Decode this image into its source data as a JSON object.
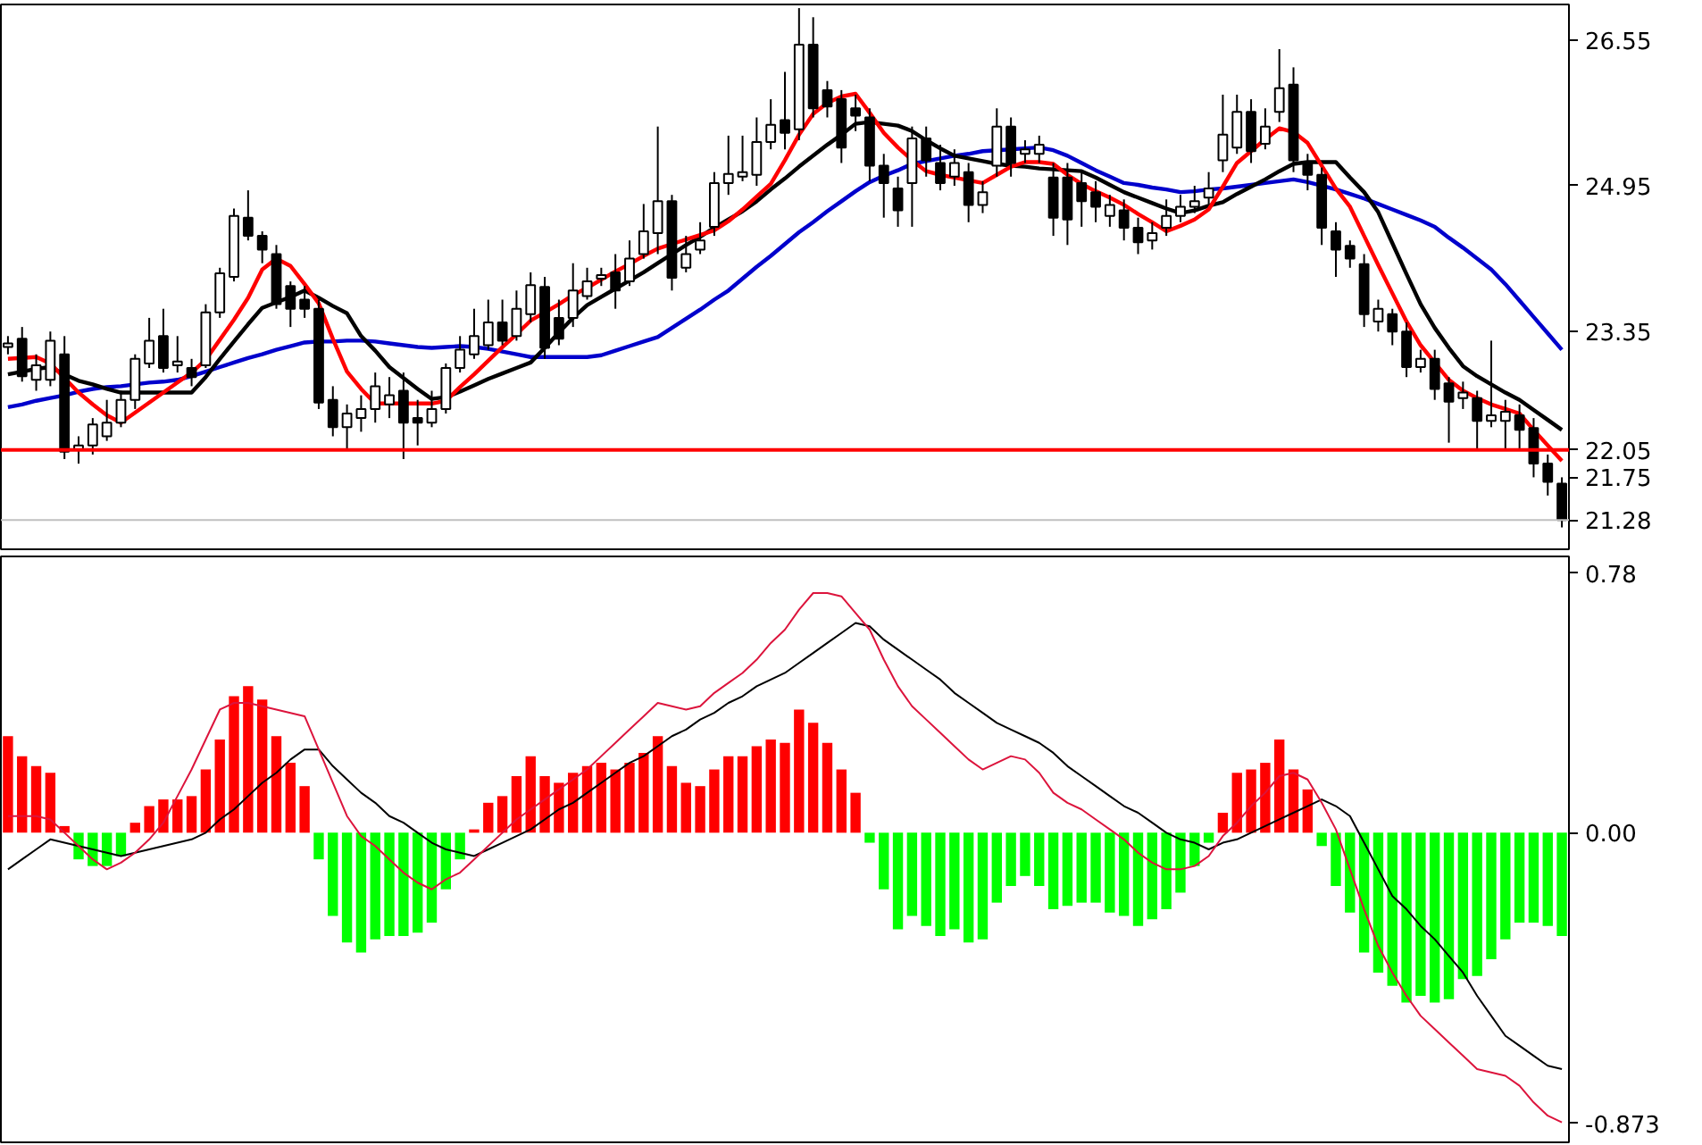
{
  "chart_data": [
    {
      "type": "candlestick",
      "categories": [
        null,
        null,
        null,
        null,
        null,
        null,
        null,
        null,
        null,
        null,
        null,
        null,
        null,
        null,
        null,
        null,
        null,
        null,
        null,
        null,
        null,
        null,
        null,
        null,
        null,
        null,
        null,
        null,
        null,
        null,
        null,
        null,
        null,
        null,
        null,
        null,
        null,
        null,
        null,
        null,
        null,
        null,
        null,
        null,
        null,
        null,
        null,
        null,
        null,
        null,
        null,
        null,
        null,
        null,
        null,
        null,
        null,
        null,
        null,
        null,
        null,
        null,
        null,
        null,
        null,
        null,
        null,
        null,
        null,
        null,
        null,
        null,
        null,
        null,
        null,
        null,
        null,
        null,
        null,
        null,
        null,
        null,
        null,
        null,
        null,
        null,
        null,
        null,
        null,
        null,
        null,
        null,
        null,
        null,
        null,
        null,
        null,
        null,
        null,
        null,
        null,
        null,
        null,
        null,
        null,
        null,
        null,
        null,
        null,
        null,
        null
      ],
      "ohlc": [
        [
          23.18,
          23.3,
          23.1,
          23.22
        ],
        [
          23.27,
          23.4,
          22.8,
          22.86
        ],
        [
          22.82,
          23.1,
          22.7,
          22.98
        ],
        [
          22.82,
          23.35,
          22.75,
          23.25
        ],
        [
          23.1,
          23.3,
          21.95,
          22.03
        ],
        [
          22.05,
          22.2,
          21.9,
          22.1
        ],
        [
          22.1,
          22.4,
          22.0,
          22.33
        ],
        [
          22.2,
          22.6,
          22.15,
          22.35
        ],
        [
          22.35,
          22.7,
          22.3,
          22.6
        ],
        [
          22.6,
          23.1,
          22.5,
          23.05
        ],
        [
          23.0,
          23.5,
          22.95,
          23.25
        ],
        [
          23.3,
          23.6,
          22.9,
          22.95
        ],
        [
          22.98,
          23.3,
          22.9,
          23.02
        ],
        [
          22.95,
          23.05,
          22.75,
          22.85
        ],
        [
          22.98,
          23.65,
          22.95,
          23.56
        ],
        [
          23.56,
          24.05,
          23.5,
          23.99
        ],
        [
          23.95,
          24.7,
          23.9,
          24.62
        ],
        [
          24.6,
          24.9,
          24.35,
          24.4
        ],
        [
          24.4,
          24.45,
          24.1,
          24.25
        ],
        [
          24.2,
          24.3,
          23.6,
          23.65
        ],
        [
          23.85,
          23.9,
          23.4,
          23.6
        ],
        [
          23.7,
          23.85,
          23.5,
          23.6
        ],
        [
          23.6,
          23.7,
          22.5,
          22.57
        ],
        [
          22.6,
          22.75,
          22.2,
          22.3
        ],
        [
          22.3,
          22.55,
          22.05,
          22.45
        ],
        [
          22.4,
          22.65,
          22.25,
          22.5
        ],
        [
          22.5,
          22.9,
          22.35,
          22.75
        ],
        [
          22.55,
          22.85,
          22.4,
          22.65
        ],
        [
          22.7,
          22.9,
          21.95,
          22.35
        ],
        [
          22.4,
          22.6,
          22.1,
          22.35
        ],
        [
          22.35,
          22.7,
          22.3,
          22.5
        ],
        [
          22.5,
          23.0,
          22.45,
          22.95
        ],
        [
          22.95,
          23.3,
          22.9,
          23.15
        ],
        [
          23.1,
          23.6,
          23.05,
          23.3
        ],
        [
          23.2,
          23.7,
          23.15,
          23.45
        ],
        [
          23.45,
          23.7,
          23.2,
          23.25
        ],
        [
          23.3,
          23.8,
          23.25,
          23.6
        ],
        [
          23.54,
          24.0,
          23.45,
          23.86
        ],
        [
          23.84,
          23.95,
          23.05,
          23.17
        ],
        [
          23.5,
          23.7,
          23.2,
          23.27
        ],
        [
          23.5,
          24.1,
          23.4,
          23.8
        ],
        [
          23.74,
          24.05,
          23.7,
          23.9
        ],
        [
          23.93,
          24.05,
          23.85,
          23.97
        ],
        [
          24.0,
          24.2,
          23.6,
          23.8
        ],
        [
          23.9,
          24.35,
          23.85,
          24.15
        ],
        [
          24.2,
          24.75,
          24.15,
          24.45
        ],
        [
          24.43,
          25.6,
          24.2,
          24.78
        ],
        [
          24.78,
          24.85,
          23.8,
          23.94
        ],
        [
          24.05,
          24.4,
          24.0,
          24.2
        ],
        [
          24.25,
          24.55,
          24.2,
          24.35
        ],
        [
          24.5,
          25.1,
          24.4,
          24.98
        ],
        [
          24.98,
          25.5,
          24.85,
          25.08
        ],
        [
          25.05,
          25.5,
          25.0,
          25.1
        ],
        [
          25.07,
          25.7,
          24.95,
          25.43
        ],
        [
          25.43,
          25.9,
          25.35,
          25.62
        ],
        [
          25.67,
          26.2,
          25.35,
          25.53
        ],
        [
          25.57,
          26.9,
          25.45,
          26.5
        ],
        [
          26.5,
          26.8,
          25.7,
          25.8
        ],
        [
          26.0,
          26.1,
          25.7,
          25.82
        ],
        [
          25.9,
          26.0,
          25.2,
          25.37
        ],
        [
          25.8,
          25.95,
          25.55,
          25.72
        ],
        [
          25.7,
          25.8,
          25.0,
          25.17
        ],
        [
          25.17,
          25.3,
          24.6,
          24.98
        ],
        [
          24.92,
          25.05,
          24.5,
          24.68
        ],
        [
          24.98,
          25.6,
          24.5,
          25.47
        ],
        [
          25.47,
          25.6,
          25.05,
          25.23
        ],
        [
          25.2,
          25.4,
          24.9,
          24.98
        ],
        [
          25.05,
          25.35,
          24.95,
          25.2
        ],
        [
          25.1,
          25.2,
          24.55,
          24.74
        ],
        [
          24.74,
          25.0,
          24.65,
          24.88
        ],
        [
          25.17,
          25.8,
          25.05,
          25.6
        ],
        [
          25.6,
          25.7,
          25.05,
          25.2
        ],
        [
          25.3,
          25.45,
          25.2,
          25.35
        ],
        [
          25.3,
          25.5,
          25.2,
          25.4
        ],
        [
          25.04,
          25.2,
          24.4,
          24.6
        ],
        [
          25.04,
          25.2,
          24.3,
          24.58
        ],
        [
          24.98,
          25.1,
          24.5,
          24.78
        ],
        [
          24.88,
          25.0,
          24.55,
          24.72
        ],
        [
          24.62,
          24.85,
          24.5,
          24.74
        ],
        [
          24.68,
          24.8,
          24.35,
          24.49
        ],
        [
          24.49,
          24.6,
          24.2,
          24.33
        ],
        [
          24.35,
          24.55,
          24.25,
          24.43
        ],
        [
          24.49,
          24.8,
          24.4,
          24.62
        ],
        [
          24.62,
          24.85,
          24.55,
          24.72
        ],
        [
          24.72,
          24.95,
          24.65,
          24.78
        ],
        [
          24.82,
          25.1,
          24.75,
          24.92
        ],
        [
          25.23,
          25.95,
          25.1,
          25.51
        ],
        [
          25.37,
          25.95,
          25.3,
          25.76
        ],
        [
          25.76,
          25.9,
          25.2,
          25.33
        ],
        [
          25.41,
          25.8,
          25.35,
          25.6
        ],
        [
          25.76,
          26.45,
          25.65,
          26.02
        ],
        [
          26.06,
          26.25,
          25.1,
          25.23
        ],
        [
          25.21,
          25.3,
          24.9,
          25.07
        ],
        [
          25.07,
          25.15,
          24.3,
          24.49
        ],
        [
          24.45,
          24.55,
          23.95,
          24.25
        ],
        [
          24.29,
          24.35,
          24.05,
          24.15
        ],
        [
          24.09,
          24.2,
          23.4,
          23.54
        ],
        [
          23.46,
          23.7,
          23.35,
          23.6
        ],
        [
          23.54,
          23.6,
          23.2,
          23.35
        ],
        [
          23.35,
          23.45,
          22.85,
          22.96
        ],
        [
          22.96,
          23.15,
          22.9,
          23.05
        ],
        [
          23.05,
          23.15,
          22.6,
          22.72
        ],
        [
          22.78,
          22.85,
          22.13,
          22.58
        ],
        [
          22.62,
          22.8,
          22.5,
          22.68
        ],
        [
          22.62,
          22.7,
          22.05,
          22.37
        ],
        [
          22.37,
          23.25,
          22.3,
          22.43
        ],
        [
          22.37,
          22.6,
          22.05,
          22.47
        ],
        [
          22.43,
          22.55,
          22.05,
          22.27
        ],
        [
          22.29,
          22.4,
          21.75,
          21.9
        ],
        [
          21.9,
          22.0,
          21.55,
          21.7
        ],
        [
          21.68,
          21.75,
          21.2,
          21.28
        ]
      ],
      "series": [
        {
          "type": "line",
          "color": "#0000cc",
          "values": [
            22.52,
            22.55,
            22.59,
            22.62,
            22.65,
            22.69,
            22.72,
            22.74,
            22.75,
            22.77,
            22.79,
            22.8,
            22.82,
            22.86,
            22.91,
            22.96,
            23.01,
            23.06,
            23.1,
            23.15,
            23.19,
            23.23,
            23.24,
            23.24,
            23.25,
            23.25,
            23.24,
            23.22,
            23.2,
            23.18,
            23.17,
            23.18,
            23.19,
            23.18,
            23.16,
            23.13,
            23.1,
            23.07,
            23.07,
            23.07,
            23.07,
            23.07,
            23.09,
            23.14,
            23.19,
            23.24,
            23.29,
            23.39,
            23.49,
            23.59,
            23.7,
            23.8,
            23.93,
            24.06,
            24.18,
            24.31,
            24.44,
            24.55,
            24.67,
            24.78,
            24.89,
            24.99,
            25.06,
            25.12,
            25.19,
            25.22,
            25.25,
            25.28,
            25.3,
            25.33,
            25.34,
            25.35,
            25.36,
            25.37,
            25.34,
            25.28,
            25.2,
            25.12,
            25.05,
            24.98,
            24.96,
            24.93,
            24.91,
            24.88,
            24.89,
            24.91,
            24.92,
            24.94,
            24.96,
            24.98,
            25.0,
            25.02,
            24.99,
            24.95,
            24.91,
            24.86,
            24.81,
            24.75,
            24.69,
            24.63,
            24.57,
            24.5,
            24.38,
            24.27,
            24.15,
            24.03,
            23.87,
            23.69,
            23.51,
            23.33,
            23.15
          ]
        },
        {
          "type": "line",
          "color": "#000000",
          "values": [
            22.88,
            22.91,
            22.94,
            22.96,
            22.88,
            22.81,
            22.77,
            22.72,
            22.68,
            22.68,
            22.68,
            22.68,
            22.68,
            22.68,
            22.85,
            23.05,
            23.24,
            23.43,
            23.61,
            23.67,
            23.73,
            23.8,
            23.72,
            23.63,
            23.55,
            23.3,
            23.14,
            22.96,
            22.84,
            22.72,
            22.61,
            22.63,
            22.69,
            22.76,
            22.83,
            22.89,
            22.95,
            23.01,
            23.17,
            23.34,
            23.5,
            23.64,
            23.73,
            23.82,
            23.91,
            24.0,
            24.1,
            24.2,
            24.3,
            24.39,
            24.49,
            24.58,
            24.67,
            24.78,
            24.91,
            25.03,
            25.16,
            25.28,
            25.4,
            25.51,
            25.63,
            25.65,
            25.63,
            25.61,
            25.55,
            25.45,
            25.36,
            25.28,
            25.25,
            25.22,
            25.19,
            25.17,
            25.16,
            25.14,
            25.13,
            25.12,
            25.11,
            25.04,
            24.96,
            24.88,
            24.82,
            24.76,
            24.7,
            24.65,
            24.68,
            24.73,
            24.77,
            24.86,
            24.94,
            25.02,
            25.11,
            25.19,
            25.21,
            25.21,
            25.21,
            25.04,
            24.88,
            24.66,
            24.32,
            23.98,
            23.65,
            23.39,
            23.17,
            22.97,
            22.86,
            22.77,
            22.68,
            22.6,
            22.49,
            22.38,
            22.27
          ]
        },
        {
          "type": "line",
          "color": "#ff0000",
          "values": [
            23.05,
            23.06,
            23.07,
            23.0,
            22.84,
            22.68,
            22.55,
            22.43,
            22.35,
            22.46,
            22.57,
            22.68,
            22.79,
            22.9,
            23.04,
            23.26,
            23.48,
            23.72,
            24.03,
            24.15,
            24.07,
            23.87,
            23.66,
            23.27,
            22.91,
            22.72,
            22.56,
            22.56,
            22.56,
            22.56,
            22.56,
            22.59,
            22.74,
            22.88,
            23.03,
            23.18,
            23.32,
            23.47,
            23.56,
            23.65,
            23.75,
            23.83,
            23.92,
            24.01,
            24.09,
            24.18,
            24.26,
            24.31,
            24.36,
            24.41,
            24.46,
            24.56,
            24.69,
            24.83,
            24.97,
            25.23,
            25.51,
            25.74,
            25.86,
            25.93,
            25.96,
            25.75,
            25.53,
            25.37,
            25.23,
            25.11,
            25.07,
            25.04,
            25.01,
            24.98,
            25.07,
            25.16,
            25.21,
            25.21,
            25.19,
            25.07,
            24.97,
            24.89,
            24.82,
            24.74,
            24.64,
            24.55,
            24.45,
            24.51,
            24.58,
            24.69,
            24.94,
            25.2,
            25.33,
            25.46,
            25.58,
            25.54,
            25.42,
            25.17,
            24.92,
            24.72,
            24.4,
            24.08,
            23.77,
            23.46,
            23.2,
            23.01,
            22.82,
            22.7,
            22.62,
            22.55,
            22.5,
            22.45,
            22.27,
            22.1,
            21.93
          ]
        }
      ],
      "ref_lines": [
        {
          "axis": "y",
          "value": 22.05,
          "label": "22.05",
          "color": "#ff0000"
        },
        {
          "axis": "y",
          "value": 21.28,
          "label": "21.28",
          "color": "#c0c0c0"
        }
      ],
      "ylim": [
        20.96,
        26.94
      ],
      "yticks": [
        26.55,
        24.95,
        23.35,
        21.75
      ],
      "tick_labels": "y"
    },
    {
      "type": "bar",
      "categories": [
        null,
        null,
        null,
        null,
        null,
        null,
        null,
        null,
        null,
        null,
        null,
        null,
        null,
        null,
        null,
        null,
        null,
        null,
        null,
        null,
        null,
        null,
        null,
        null,
        null,
        null,
        null,
        null,
        null,
        null,
        null,
        null,
        null,
        null,
        null,
        null,
        null,
        null,
        null,
        null,
        null,
        null,
        null,
        null,
        null,
        null,
        null,
        null,
        null,
        null,
        null,
        null,
        null,
        null,
        null,
        null,
        null,
        null,
        null,
        null,
        null,
        null,
        null,
        null,
        null,
        null,
        null,
        null,
        null,
        null,
        null,
        null,
        null,
        null,
        null,
        null,
        null,
        null,
        null,
        null,
        null,
        null,
        null,
        null,
        null,
        null,
        null,
        null,
        null,
        null,
        null,
        null,
        null,
        null,
        null,
        null,
        null,
        null,
        null,
        null,
        null,
        null,
        null,
        null,
        null,
        null,
        null,
        null,
        null,
        null,
        null
      ],
      "series": [
        {
          "type": "bar",
          "values": [
            0.29,
            0.23,
            0.2,
            0.18,
            0.02,
            -0.08,
            -0.1,
            -0.1,
            -0.07,
            0.03,
            0.08,
            0.1,
            0.1,
            0.11,
            0.19,
            0.28,
            0.41,
            0.44,
            0.4,
            0.29,
            0.21,
            0.14,
            -0.08,
            -0.25,
            -0.33,
            -0.36,
            -0.32,
            -0.31,
            -0.31,
            -0.3,
            -0.27,
            -0.17,
            -0.08,
            0.01,
            0.09,
            0.11,
            0.17,
            0.23,
            0.17,
            0.15,
            0.18,
            0.2,
            0.21,
            0.19,
            0.21,
            0.24,
            0.29,
            0.2,
            0.15,
            0.14,
            0.19,
            0.23,
            0.23,
            0.26,
            0.28,
            0.27,
            0.37,
            0.33,
            0.27,
            0.19,
            0.12,
            -0.03,
            -0.17,
            -0.29,
            -0.25,
            -0.28,
            -0.31,
            -0.29,
            -0.33,
            -0.32,
            -0.21,
            -0.16,
            -0.13,
            -0.16,
            -0.23,
            -0.22,
            -0.21,
            -0.21,
            -0.24,
            -0.25,
            -0.28,
            -0.26,
            -0.23,
            -0.18,
            -0.1,
            -0.03,
            0.06,
            0.18,
            0.19,
            0.21,
            0.28,
            0.19,
            0.13,
            -0.04,
            -0.16,
            -0.24,
            -0.36,
            -0.42,
            -0.46,
            -0.51,
            -0.49,
            -0.51,
            -0.5,
            -0.44,
            -0.43,
            -0.38,
            -0.32,
            -0.27,
            -0.27,
            -0.28,
            -0.31
          ],
          "colors": [
            "#ff0000",
            "#ff0000",
            "#ff0000",
            "#ff0000",
            "#ff0000",
            "#00ff00",
            "#00ff00",
            "#00ff00",
            "#00ff00",
            "#ff0000",
            "#ff0000",
            "#ff0000",
            "#ff0000",
            "#ff0000",
            "#ff0000",
            "#ff0000",
            "#ff0000",
            "#ff0000",
            "#ff0000",
            "#ff0000",
            "#ff0000",
            "#ff0000",
            "#00ff00",
            "#00ff00",
            "#00ff00",
            "#00ff00",
            "#00ff00",
            "#00ff00",
            "#00ff00",
            "#00ff00",
            "#00ff00",
            "#00ff00",
            "#00ff00",
            "#ff0000",
            "#ff0000",
            "#ff0000",
            "#ff0000",
            "#ff0000",
            "#ff0000",
            "#ff0000",
            "#ff0000",
            "#ff0000",
            "#ff0000",
            "#ff0000",
            "#ff0000",
            "#ff0000",
            "#ff0000",
            "#ff0000",
            "#ff0000",
            "#ff0000",
            "#ff0000",
            "#ff0000",
            "#ff0000",
            "#ff0000",
            "#ff0000",
            "#ff0000",
            "#ff0000",
            "#ff0000",
            "#ff0000",
            "#ff0000",
            "#ff0000",
            "#00ff00",
            "#00ff00",
            "#00ff00",
            "#00ff00",
            "#00ff00",
            "#00ff00",
            "#00ff00",
            "#00ff00",
            "#00ff00",
            "#00ff00",
            "#00ff00",
            "#00ff00",
            "#00ff00",
            "#00ff00",
            "#00ff00",
            "#00ff00",
            "#00ff00",
            "#00ff00",
            "#00ff00",
            "#00ff00",
            "#00ff00",
            "#00ff00",
            "#00ff00",
            "#00ff00",
            "#00ff00",
            "#ff0000",
            "#ff0000",
            "#ff0000",
            "#ff0000",
            "#ff0000",
            "#ff0000",
            "#ff0000",
            "#00ff00",
            "#00ff00",
            "#00ff00",
            "#00ff00",
            "#00ff00",
            "#00ff00",
            "#00ff00",
            "#00ff00",
            "#00ff00",
            "#00ff00",
            "#00ff00",
            "#00ff00",
            "#00ff00",
            "#00ff00",
            "#00ff00",
            "#00ff00",
            "#00ff00",
            "#00ff00"
          ]
        },
        {
          "type": "line",
          "color": "#000000",
          "values": [
            -0.11,
            -0.08,
            -0.05,
            -0.02,
            -0.03,
            -0.04,
            -0.05,
            -0.06,
            -0.07,
            -0.06,
            -0.05,
            -0.04,
            -0.03,
            -0.02,
            0.0,
            0.04,
            0.07,
            0.11,
            0.15,
            0.18,
            0.22,
            0.25,
            0.25,
            0.2,
            0.16,
            0.12,
            0.09,
            0.05,
            0.03,
            0.0,
            -0.03,
            -0.05,
            -0.06,
            -0.07,
            -0.05,
            -0.03,
            -0.01,
            0.01,
            0.04,
            0.07,
            0.09,
            0.12,
            0.15,
            0.18,
            0.21,
            0.23,
            0.26,
            0.29,
            0.31,
            0.34,
            0.36,
            0.39,
            0.41,
            0.44,
            0.46,
            0.48,
            0.51,
            0.54,
            0.57,
            0.6,
            0.63,
            0.62,
            0.58,
            0.55,
            0.52,
            0.49,
            0.46,
            0.42,
            0.39,
            0.36,
            0.33,
            0.31,
            0.29,
            0.27,
            0.24,
            0.2,
            0.17,
            0.14,
            0.11,
            0.08,
            0.06,
            0.03,
            0.0,
            -0.02,
            -0.03,
            -0.05,
            -0.03,
            -0.02,
            0.0,
            0.02,
            0.04,
            0.06,
            0.08,
            0.1,
            0.08,
            0.05,
            -0.03,
            -0.11,
            -0.19,
            -0.23,
            -0.28,
            -0.32,
            -0.37,
            -0.42,
            -0.49,
            -0.55,
            -0.61,
            -0.64,
            -0.67,
            -0.7,
            -0.71
          ]
        },
        {
          "type": "line",
          "color": "#dc143c",
          "values": [
            0.05,
            0.05,
            0.05,
            0.04,
            0.0,
            -0.04,
            -0.08,
            -0.11,
            -0.09,
            -0.06,
            -0.02,
            0.03,
            0.11,
            0.19,
            0.28,
            0.37,
            0.39,
            0.39,
            0.38,
            0.37,
            0.36,
            0.35,
            0.25,
            0.15,
            0.05,
            -0.01,
            -0.04,
            -0.08,
            -0.12,
            -0.15,
            -0.17,
            -0.14,
            -0.12,
            -0.08,
            -0.04,
            0.0,
            0.04,
            0.07,
            0.1,
            0.13,
            0.16,
            0.19,
            0.23,
            0.27,
            0.31,
            0.35,
            0.39,
            0.38,
            0.37,
            0.38,
            0.42,
            0.45,
            0.48,
            0.52,
            0.57,
            0.61,
            0.67,
            0.72,
            0.72,
            0.71,
            0.66,
            0.61,
            0.52,
            0.44,
            0.38,
            0.34,
            0.3,
            0.26,
            0.22,
            0.19,
            0.21,
            0.23,
            0.22,
            0.18,
            0.12,
            0.09,
            0.07,
            0.04,
            0.01,
            -0.02,
            -0.06,
            -0.09,
            -0.11,
            -0.11,
            -0.1,
            -0.07,
            -0.01,
            0.03,
            0.08,
            0.12,
            0.17,
            0.18,
            0.16,
            0.09,
            0.01,
            -0.11,
            -0.23,
            -0.34,
            -0.42,
            -0.49,
            -0.55,
            -0.59,
            -0.63,
            -0.67,
            -0.71,
            -0.72,
            -0.73,
            -0.76,
            -0.81,
            -0.85,
            -0.87
          ]
        }
      ],
      "ylim": [
        -0.93,
        0.83
      ],
      "yticks": [
        0.78,
        {
          "value": 0,
          "label": "0.00"
        },
        -0.873
      ],
      "tick_labels": "y"
    }
  ]
}
